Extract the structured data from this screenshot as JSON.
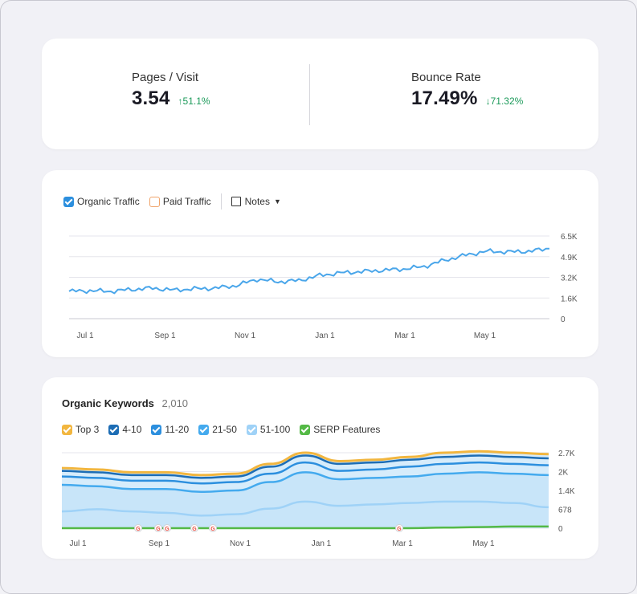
{
  "metrics": [
    {
      "label": "Pages / Visit",
      "value": "3.54",
      "delta": "↑51.1%",
      "delta_color": "#1c9a5a"
    },
    {
      "label": "Bounce Rate",
      "value": "17.49%",
      "delta": "↓71.32%",
      "delta_color": "#1c9a5a"
    }
  ],
  "traffic_legend": {
    "organic": "Organic Traffic",
    "paid": "Paid Traffic",
    "notes": "Notes"
  },
  "keywords": {
    "title": "Organic Keywords",
    "count": "2,010",
    "legend": [
      {
        "label": "Top 3",
        "color": "#f2b63f"
      },
      {
        "label": "4-10",
        "color": "#1d6db5"
      },
      {
        "label": "11-20",
        "color": "#2c8fde"
      },
      {
        "label": "21-50",
        "color": "#44aaee"
      },
      {
        "label": "51-100",
        "color": "#9fd2f7"
      },
      {
        "label": "SERP Features",
        "color": "#54b946"
      }
    ]
  },
  "colors": {
    "organic": "#4aa6ea",
    "paid": "#f0a36a",
    "serp": "#54b946"
  },
  "chart_data": [
    {
      "type": "line",
      "x_ticks": [
        "Jul 1",
        "Sep 1",
        "Nov 1",
        "Jan 1",
        "Mar 1",
        "May 1"
      ],
      "y_ticks": [
        "6.5K",
        "4.9K",
        "3.2K",
        "1.6K",
        "0"
      ],
      "ylim": [
        0,
        6500
      ],
      "series": [
        {
          "name": "Organic Traffic",
          "x": [
            "Jul 1",
            "Jul 15",
            "Aug 1",
            "Aug 15",
            "Sep 1",
            "Sep 15",
            "Oct 1",
            "Oct 15",
            "Nov 1",
            "Nov 15",
            "Dec 1",
            "Dec 15",
            "Jan 1",
            "Jan 15",
            "Feb 1",
            "Feb 15",
            "Mar 1",
            "Mar 15",
            "Apr 1",
            "Apr 15",
            "May 1",
            "May 15",
            "Jun 1",
            "Jun 15"
          ],
          "values": [
            2150,
            2200,
            2150,
            2300,
            2400,
            2250,
            2350,
            2400,
            2600,
            3100,
            2900,
            3000,
            3400,
            3600,
            3700,
            3800,
            3900,
            4100,
            4600,
            5000,
            5300,
            5250,
            5300,
            5500
          ]
        }
      ],
      "grid": true
    },
    {
      "type": "area",
      "x_ticks": [
        "Jul 1",
        "Sep 1",
        "Nov 1",
        "Jan 1",
        "Mar 1",
        "May 1"
      ],
      "y_ticks": [
        "2.7K",
        "2K",
        "1.4K",
        "678",
        "0"
      ],
      "ylim": [
        0,
        2700
      ],
      "x": [
        "Jul 1",
        "Aug 1",
        "Sep 1",
        "Oct 1",
        "Nov 1",
        "Dec 1",
        "Jan 1",
        "Jan 15",
        "Feb 1",
        "Feb 15",
        "Mar 1",
        "Apr 1",
        "May 1",
        "Jun 1",
        "Jun 20"
      ],
      "series": [
        {
          "name": "Top 3",
          "values": [
            2150,
            2100,
            2000,
            2000,
            1900,
            1950,
            2300,
            2700,
            2400,
            2450,
            2550,
            2700,
            2750,
            2700,
            2650
          ]
        },
        {
          "name": "4-10",
          "values": [
            2050,
            2000,
            1900,
            1900,
            1800,
            1850,
            2200,
            2600,
            2300,
            2350,
            2450,
            2550,
            2600,
            2550,
            2500
          ]
        },
        {
          "name": "11-20",
          "values": [
            1850,
            1800,
            1700,
            1700,
            1600,
            1650,
            1950,
            2350,
            2050,
            2100,
            2200,
            2300,
            2350,
            2300,
            2250
          ]
        },
        {
          "name": "21-50",
          "values": [
            1550,
            1500,
            1400,
            1400,
            1300,
            1350,
            1650,
            2000,
            1750,
            1800,
            1850,
            1950,
            2000,
            1950,
            1900
          ]
        },
        {
          "name": "51-100",
          "values": [
            600,
            680,
            600,
            550,
            450,
            500,
            700,
            950,
            800,
            850,
            900,
            950,
            950,
            900,
            750
          ]
        },
        {
          "name": "SERP Features",
          "values": [
            0,
            0,
            0,
            0,
            0,
            0,
            0,
            0,
            0,
            0,
            0,
            20,
            40,
            60,
            60
          ]
        }
      ],
      "grid": true
    }
  ]
}
